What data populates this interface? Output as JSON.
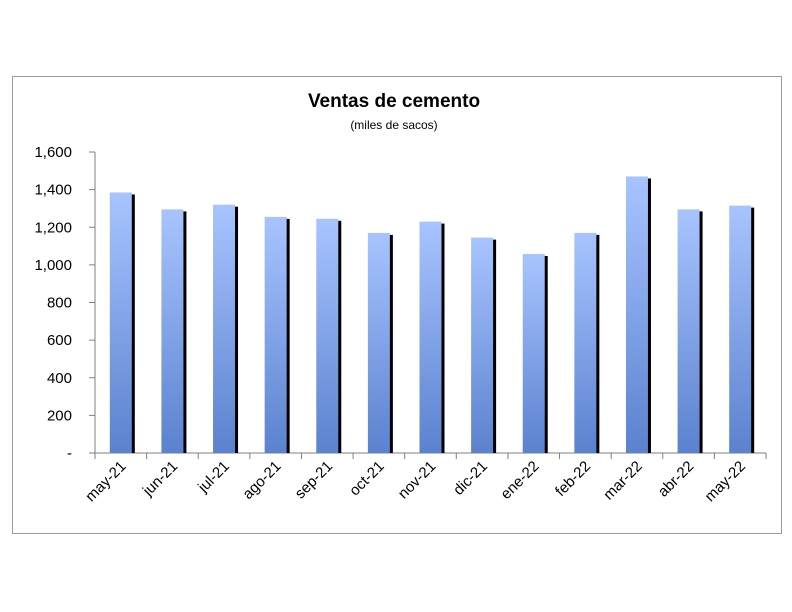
{
  "chart_data": {
    "type": "bar",
    "title": "Ventas de cemento",
    "subtitle": "(miles de sacos)",
    "categories": [
      "may-21",
      "jun-21",
      "jul-21",
      "ago-21",
      "sep-21",
      "oct-21",
      "nov-21",
      "dic-21",
      "ene-22",
      "feb-22",
      "mar-22",
      "abr-22",
      "may-22"
    ],
    "values": [
      1385,
      1295,
      1320,
      1255,
      1245,
      1170,
      1230,
      1145,
      1058,
      1170,
      1470,
      1295,
      1315
    ],
    "ylim": [
      0,
      1600
    ],
    "yticks": [
      0,
      200,
      400,
      600,
      800,
      1000,
      1200,
      1400,
      1600
    ],
    "ytick_labels": [
      "-",
      "200",
      "400",
      "600",
      "800",
      "1,000",
      "1,200",
      "1,400",
      "1,600"
    ],
    "grid": false,
    "legend": "none",
    "colors": {
      "bar_top": "#a8c4ff",
      "bar_bottom": "#5b82cf",
      "bar_shadow": "#000000",
      "axis": "#7f7f7f"
    }
  }
}
